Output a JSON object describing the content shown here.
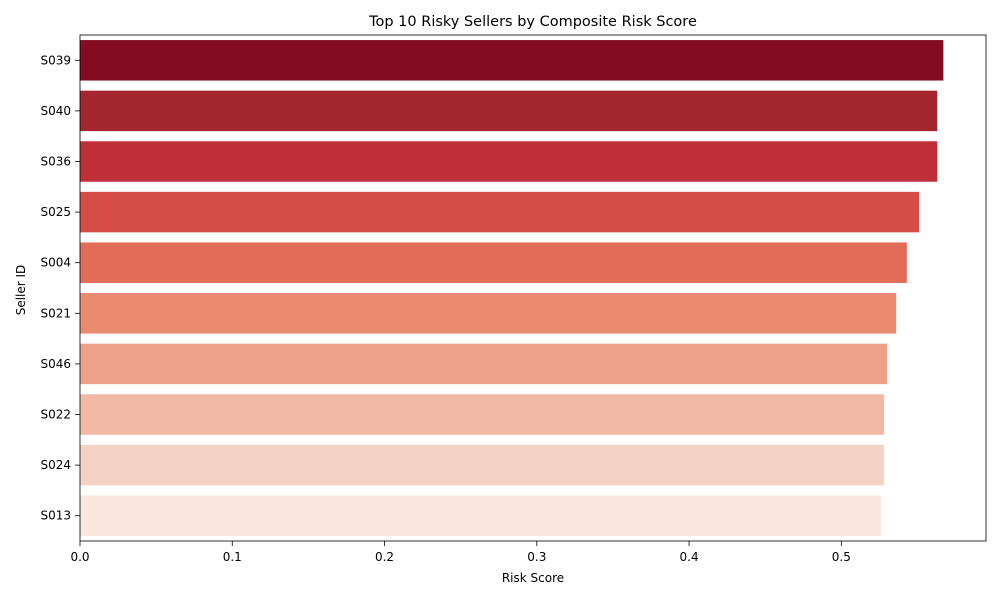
{
  "chart_data": {
    "type": "bar",
    "orientation": "horizontal",
    "title": "Top 10 Risky Sellers by Composite Risk Score",
    "xlabel": "Risk Score",
    "ylabel": "Seller ID",
    "xlim": [
      0,
      0.595
    ],
    "xticks": [
      0.0,
      0.1,
      0.2,
      0.3,
      0.4,
      0.5
    ],
    "xtick_labels": [
      "0.0",
      "0.1",
      "0.2",
      "0.3",
      "0.4",
      "0.5"
    ],
    "grid": false,
    "legend": "none",
    "categories": [
      "S039",
      "S040",
      "S036",
      "S025",
      "S004",
      "S021",
      "S046",
      "S022",
      "S024",
      "S013"
    ],
    "values": [
      0.567,
      0.563,
      0.563,
      0.551,
      0.543,
      0.536,
      0.53,
      0.528,
      0.528,
      0.526
    ],
    "colors": [
      "#840c22",
      "#a3262e",
      "#bf2f37",
      "#d54c44",
      "#e26c57",
      "#ea8a70",
      "#eea18a",
      "#f1b8a4",
      "#f4d3c4",
      "#f8e6df"
    ]
  }
}
